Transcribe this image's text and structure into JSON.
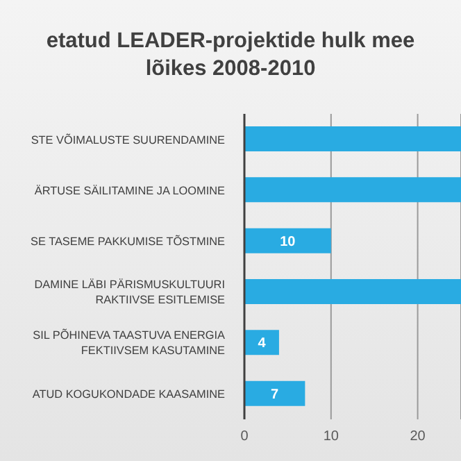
{
  "chart_data": {
    "type": "bar",
    "orientation": "horizontal",
    "title": "etatud LEADER-projektide hulk mee lõikes 2008-2010",
    "categories": [
      "STE VÕIMALUSTE SUURENDAMINE",
      "ÄRTUSE SÄILITAMINE JA LOOMINE",
      "SE TASEME PAKKUMISE TÕSTMINE",
      "DAMINE LÄBI PÄRISMUSKULTUURI RAKTIIVSE ESITLEMISE",
      "SIL PÕHINEVA TAASTUVA ENERGIA FEKTIIVSEM KASUTAMINE",
      "ATUD KOGUKONDADE KAASAMINE"
    ],
    "values": [
      25,
      25,
      10,
      25,
      4,
      7
    ],
    "color": "#29abe2",
    "value_labels": [
      null,
      null,
      "10",
      null,
      "4",
      "7"
    ],
    "xlim": [
      0,
      25
    ],
    "xticks": [
      0,
      10,
      20
    ],
    "grid": "x"
  }
}
